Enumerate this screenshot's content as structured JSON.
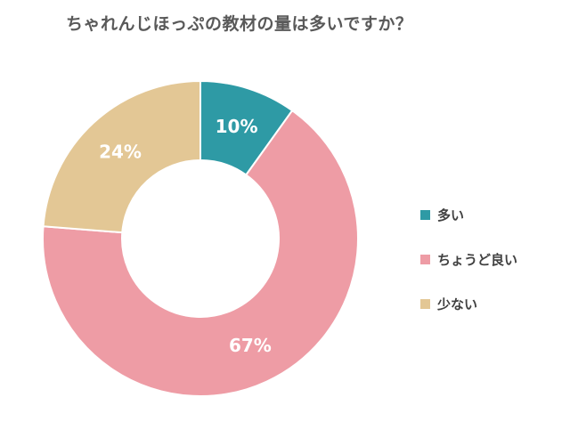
{
  "title": "ちゃれんじほっぷの教材の量は多いですか？",
  "chart_data": {
    "type": "pie",
    "subtype": "donut",
    "title": "ちゃれんじほっぷの教材の量は多いですか？",
    "categories": [
      "多い",
      "ちょうど良い",
      "少ない"
    ],
    "values": [
      10,
      67,
      24
    ],
    "labels": [
      "10%",
      "67%",
      "24%"
    ],
    "colors": [
      "#2e9aa5",
      "#ee9ca5",
      "#e3c795"
    ],
    "legend_position": "right"
  },
  "legend": {
    "items": [
      {
        "label": "多い",
        "color": "#2e9aa5"
      },
      {
        "label": "ちょうど良い",
        "color": "#ee9ca5"
      },
      {
        "label": "少ない",
        "color": "#e3c795"
      }
    ]
  }
}
